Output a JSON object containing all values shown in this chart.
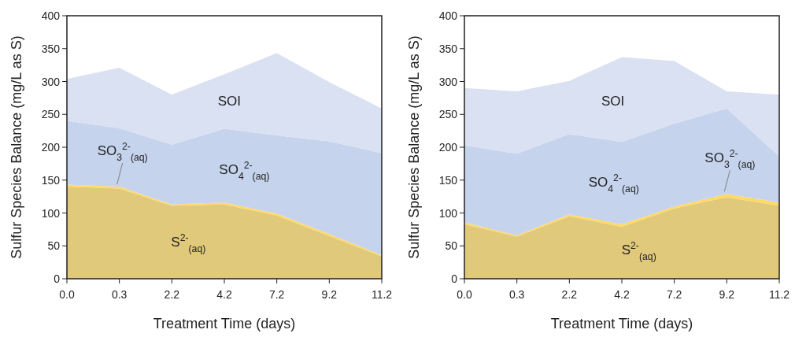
{
  "chart_data": [
    {
      "type": "area",
      "stacked": true,
      "xlabel": "Treatment Time (days)",
      "ylabel": "Sulfur Species Balance (mg/L as S)",
      "categories": [
        "0.0",
        "0.3",
        "2.2",
        "4.2",
        "7.2",
        "9.2",
        "11.2"
      ],
      "ylim": [
        0,
        400
      ],
      "yticks": [
        0,
        50,
        100,
        150,
        200,
        250,
        300,
        350,
        400
      ],
      "series": [
        {
          "name": "S$^{2-}$$_{(aq)}$",
          "color": "#e0c97a",
          "values": [
            140,
            137,
            111,
            113,
            96,
            65,
            34
          ]
        },
        {
          "name": "SO$_{3}$$^{2-}$$_{(aq)}$",
          "color": "#ffd966",
          "values": [
            3,
            3,
            2,
            3,
            3,
            3,
            2
          ]
        },
        {
          "name": "SO$_{4}$$^{2-}$$_{(aq)}$",
          "color": "#c5d3ec",
          "values": [
            97,
            89,
            91,
            112,
            119,
            141,
            155
          ]
        },
        {
          "name": "SOI",
          "color": "#d9e1f2",
          "values": [
            64,
            92,
            76,
            83,
            125,
            90,
            68
          ]
        }
      ]
    },
    {
      "type": "area",
      "stacked": true,
      "xlabel": "Treatment Time (days)",
      "ylabel": "Sulfur Species Balance (mg/L as S)",
      "categories": [
        "0.0",
        "0.3",
        "2.2",
        "4.2",
        "7.2",
        "9.2",
        "11.2"
      ],
      "ylim": [
        0,
        400
      ],
      "yticks": [
        0,
        50,
        100,
        150,
        200,
        250,
        300,
        350,
        400
      ],
      "series": [
        {
          "name": "S$^{2-}$$_{(aq)}$",
          "color": "#e0c97a",
          "values": [
            83,
            64,
            95,
            79,
            107,
            124,
            111
          ]
        },
        {
          "name": "SO$_{3}$$^{2-}$$_{(aq)}$",
          "color": "#ffd966",
          "values": [
            3,
            2,
            3,
            4,
            3,
            5,
            5
          ]
        },
        {
          "name": "SO$_{4}$$^{2-}$$_{(aq)}$",
          "color": "#c5d3ec",
          "values": [
            117,
            124,
            122,
            125,
            126,
            130,
            70
          ]
        },
        {
          "name": "SOI",
          "color": "#d9e1f2",
          "values": [
            87,
            95,
            81,
            129,
            95,
            26,
            94
          ]
        }
      ]
    }
  ]
}
